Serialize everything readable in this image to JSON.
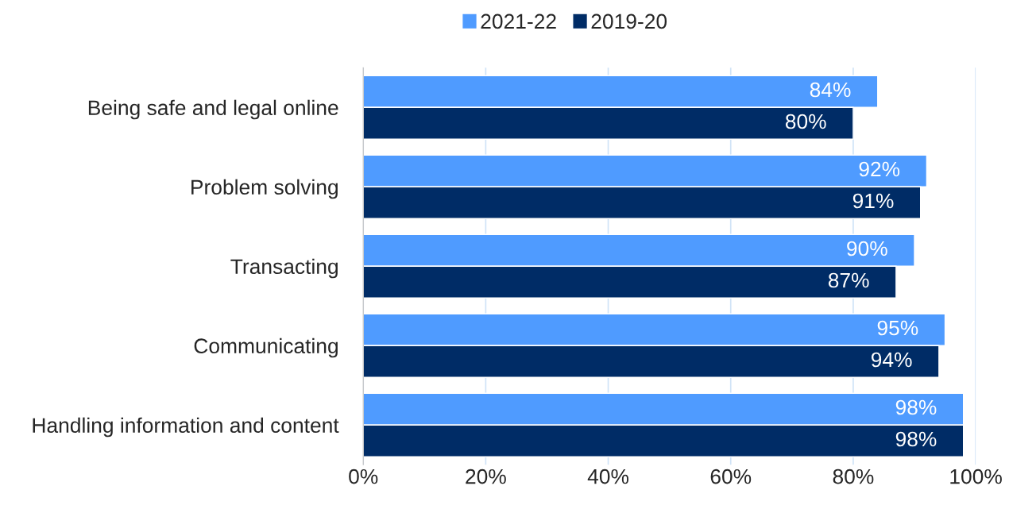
{
  "chart_data": {
    "type": "bar",
    "orientation": "horizontal",
    "categories": [
      "Being safe and legal online",
      "Problem solving",
      "Transacting",
      "Communicating",
      "Handling information and content"
    ],
    "series": [
      {
        "name": "2021-22",
        "color": "#4f9bff",
        "values": [
          84,
          92,
          90,
          95,
          98
        ],
        "value_labels": [
          "84%",
          "92%",
          "90%",
          "95%",
          "98%"
        ]
      },
      {
        "name": "2019-20",
        "color": "#002c66",
        "values": [
          80,
          91,
          87,
          94,
          98
        ],
        "value_labels": [
          "80%",
          "91%",
          "87%",
          "94%",
          "98%"
        ]
      }
    ],
    "xlim": [
      0,
      100
    ],
    "xticks": [
      {
        "value": 0,
        "label": "0%"
      },
      {
        "value": 20,
        "label": "20%"
      },
      {
        "value": 40,
        "label": "40%"
      },
      {
        "value": 60,
        "label": "60%"
      },
      {
        "value": 80,
        "label": "80%"
      },
      {
        "value": 100,
        "label": "100%"
      }
    ],
    "grid": "x",
    "legend": "top"
  }
}
